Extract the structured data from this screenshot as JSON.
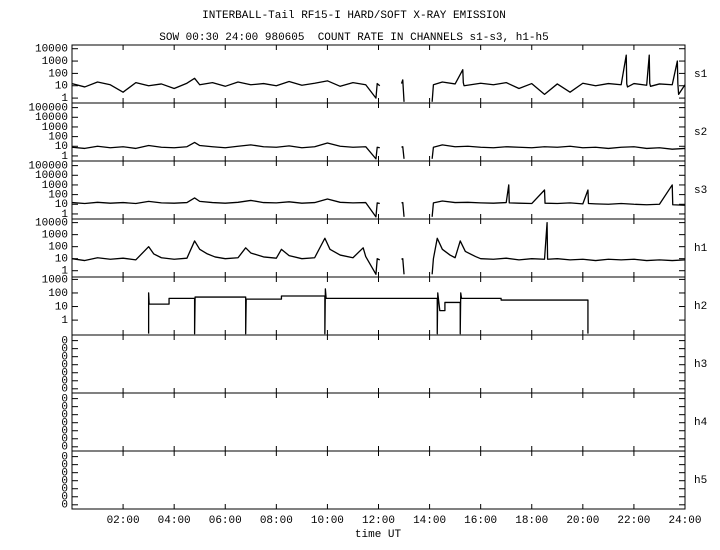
{
  "chart_data": {
    "type": "line",
    "title": "INTERBALL-Tail RF15-I HARD/SOFT X-RAY EMISSION",
    "subtitle": "SOW 00:30 24:00 980605  COUNT RATE IN CHANNELS s1-s3, h1-h5",
    "xlabel": "time UT",
    "xlim": [
      0,
      24
    ],
    "xticks": [
      {
        "value": 2,
        "label": "02:00"
      },
      {
        "value": 4,
        "label": "04:00"
      },
      {
        "value": 6,
        "label": "06:00"
      },
      {
        "value": 8,
        "label": "08:00"
      },
      {
        "value": 10,
        "label": "10:00"
      },
      {
        "value": 12,
        "label": "12:00"
      },
      {
        "value": 14,
        "label": "14:00"
      },
      {
        "value": 16,
        "label": "16:00"
      },
      {
        "value": 18,
        "label": "18:00"
      },
      {
        "value": 20,
        "label": "20:00"
      },
      {
        "value": 22,
        "label": "22:00"
      },
      {
        "value": 24,
        "label": "24:00"
      }
    ],
    "log_y": true,
    "color": "#000000",
    "panels": [
      {
        "name": "s1",
        "ylim": [
          0.4,
          20000
        ],
        "yticks": [
          1,
          10,
          100,
          1000,
          10000
        ],
        "x": [
          0,
          0.5,
          1,
          1.5,
          2,
          2.5,
          3,
          3.5,
          4,
          4.5,
          4.8,
          5,
          5.5,
          6,
          6.5,
          7,
          7.5,
          8,
          8.5,
          9,
          9.5,
          10,
          10.5,
          11,
          11.5,
          11.9,
          11.95,
          12.05,
          12.5,
          12.9,
          12.95,
          13,
          13.5,
          14.1,
          14.15,
          14.5,
          15,
          15.3,
          15.32,
          15.35,
          16,
          16.5,
          17,
          17.5,
          18,
          18.5,
          19,
          19.5,
          20,
          20.5,
          21,
          21.5,
          21.7,
          21.72,
          21.75,
          22,
          22.5,
          22.6,
          22.62,
          22.65,
          23,
          23.5,
          23.7,
          23.72,
          23.75,
          24
        ],
        "values": [
          15,
          8,
          20,
          12,
          3,
          18,
          10,
          14,
          6,
          16,
          40,
          12,
          18,
          9,
          20,
          12,
          15,
          10,
          22,
          11,
          16,
          25,
          9,
          18,
          12,
          1,
          15,
          10,
          null,
          15,
          30,
          0.5,
          null,
          0.5,
          12,
          20,
          14,
          200,
          18,
          10,
          16,
          12,
          18,
          6,
          15,
          2,
          14,
          3,
          16,
          10,
          15,
          12,
          3000,
          14,
          8,
          15,
          11,
          3000,
          16,
          9,
          14,
          12,
          1000,
          15,
          2,
          12
        ]
      },
      {
        "name": "s2",
        "ylim": [
          0.3,
          300000
        ],
        "yticks": [
          1,
          10,
          100,
          1000,
          10000,
          100000
        ],
        "x": [
          0,
          0.5,
          1,
          1.5,
          2,
          2.5,
          3,
          3.5,
          4,
          4.5,
          4.8,
          5,
          5.5,
          6,
          6.5,
          7,
          7.5,
          8,
          8.5,
          9,
          9.5,
          10,
          10.5,
          11,
          11.5,
          11.9,
          11.95,
          12.05,
          12.5,
          12.9,
          12.95,
          13,
          13.5,
          14.1,
          14.15,
          14.5,
          15,
          15.5,
          16,
          16.5,
          17,
          17.5,
          18,
          18.5,
          19,
          19.5,
          20,
          20.5,
          21,
          21.5,
          22,
          22.5,
          23,
          23.5,
          24
        ],
        "values": [
          8,
          6,
          10,
          7,
          9,
          6,
          12,
          8,
          7,
          9,
          25,
          12,
          9,
          7,
          10,
          14,
          9,
          8,
          11,
          7,
          9,
          22,
          10,
          8,
          9,
          0.5,
          8,
          7,
          null,
          8,
          9,
          0.5,
          null,
          0.5,
          8,
          14,
          9,
          10,
          8,
          7,
          9,
          8,
          7,
          9,
          8,
          10,
          7,
          8,
          6,
          8,
          9,
          6,
          7,
          5,
          6
        ]
      },
      {
        "name": "s3",
        "ylim": [
          0.3,
          300000
        ],
        "yticks": [
          1,
          10,
          100,
          1000,
          10000,
          100000
        ],
        "x": [
          0,
          0.5,
          1,
          1.5,
          2,
          2.5,
          3,
          3.5,
          4,
          4.5,
          4.8,
          5,
          5.5,
          6,
          6.5,
          7,
          7.5,
          8,
          8.5,
          9,
          9.5,
          10,
          10.5,
          11,
          11.5,
          11.9,
          11.95,
          12.05,
          12.5,
          12.9,
          12.95,
          13,
          13.5,
          14.1,
          14.15,
          14.5,
          15,
          15.5,
          16,
          16.5,
          17,
          17.1,
          17.12,
          17.5,
          18,
          18.5,
          18.52,
          19,
          19.5,
          20,
          20.2,
          20.22,
          20.5,
          21,
          21.5,
          22,
          22.5,
          23,
          23.5,
          23.52,
          24
        ],
        "values": [
          15,
          12,
          16,
          13,
          15,
          12,
          20,
          14,
          13,
          15,
          45,
          20,
          15,
          13,
          16,
          25,
          15,
          14,
          18,
          13,
          15,
          35,
          16,
          14,
          15,
          0.5,
          14,
          12,
          null,
          14,
          15,
          0.5,
          null,
          0.5,
          14,
          22,
          15,
          16,
          14,
          13,
          15,
          1000,
          14,
          13,
          12,
          300,
          13,
          12,
          14,
          11,
          300,
          12,
          11,
          10,
          12,
          10,
          9,
          10,
          1000,
          9,
          8
        ]
      },
      {
        "name": "h1",
        "ylim": [
          0.3,
          20000
        ],
        "yticks": [
          1,
          10,
          100,
          1000,
          10000
        ],
        "x": [
          0,
          0.5,
          1,
          1.5,
          2,
          2.5,
          3,
          3.2,
          3.5,
          4,
          4.5,
          4.8,
          5,
          5.3,
          5.6,
          6,
          6.5,
          6.8,
          7,
          7.5,
          8,
          8.2,
          8.5,
          9,
          9.5,
          9.9,
          10.1,
          10.5,
          11,
          11.4,
          11.5,
          11.9,
          11.95,
          12.05,
          12.5,
          12.9,
          12.95,
          13,
          13.5,
          14.1,
          14.15,
          14.3,
          14.5,
          14.8,
          15,
          15.2,
          15.4,
          15.8,
          16,
          16.5,
          17,
          17.5,
          18,
          18.5,
          18.6,
          18.62,
          19,
          19.5,
          20,
          20.5,
          21,
          21.5,
          22,
          22.5,
          23,
          23.5,
          24
        ],
        "values": [
          10,
          7,
          12,
          9,
          11,
          8,
          100,
          25,
          12,
          9,
          11,
          300,
          60,
          25,
          14,
          10,
          12,
          80,
          30,
          14,
          11,
          60,
          18,
          10,
          12,
          500,
          60,
          20,
          12,
          80,
          15,
          0.5,
          10,
          8,
          null,
          9,
          10,
          0.5,
          null,
          0.5,
          10,
          500,
          60,
          20,
          12,
          300,
          40,
          15,
          10,
          9,
          11,
          8,
          10,
          9,
          10000,
          9,
          10,
          8,
          9,
          7,
          9,
          8,
          9,
          7,
          8,
          7,
          8
        ]
      },
      {
        "name": "h2",
        "ylim": [
          0.08,
          1500
        ],
        "yticks": [
          1,
          10,
          100,
          1000
        ],
        "x": [
          3,
          3,
          3.02,
          3.8,
          3.8,
          4.8,
          4.8,
          4.82,
          6.8,
          6.8,
          6.82,
          8.2,
          8.2,
          9.9,
          9.9,
          9.92,
          9.95,
          14.3,
          14.3,
          14.32,
          14.4,
          14.6,
          14.6,
          15.2,
          15.2,
          15.22,
          15.25,
          16.8,
          16.8,
          20.2,
          20.2
        ],
        "values": [
          0.1,
          100,
          15,
          15,
          40,
          40,
          0.1,
          50,
          50,
          0.1,
          35,
          35,
          60,
          60,
          0.1,
          200,
          40,
          40,
          0.1,
          100,
          5,
          5,
          20,
          20,
          0.1,
          100,
          40,
          40,
          30,
          30,
          0.1
        ]
      },
      {
        "name": "h3",
        "ylim": [
          3e-08,
          0.5
        ],
        "yticks": [
          {
            "value": 1e-07,
            "label": "0"
          },
          {
            "value": 1e-06,
            "label": "0"
          },
          {
            "value": 1e-05,
            "label": "0"
          },
          {
            "value": 0.0001,
            "label": "0"
          },
          {
            "value": 0.001,
            "label": "0"
          },
          {
            "value": 0.01,
            "label": "0"
          },
          {
            "value": 0.1,
            "label": "0"
          }
        ]
      },
      {
        "name": "h4",
        "ylim": [
          3e-08,
          0.5
        ],
        "yticks": [
          {
            "value": 1e-07,
            "label": "0"
          },
          {
            "value": 1e-06,
            "label": "0"
          },
          {
            "value": 1e-05,
            "label": "0"
          },
          {
            "value": 0.0001,
            "label": "0"
          },
          {
            "value": 0.001,
            "label": "0"
          },
          {
            "value": 0.01,
            "label": "0"
          },
          {
            "value": 0.1,
            "label": "0"
          }
        ]
      },
      {
        "name": "h5",
        "ylim": [
          3e-08,
          0.5
        ],
        "yticks": [
          {
            "value": 1e-07,
            "label": "0"
          },
          {
            "value": 1e-06,
            "label": "0"
          },
          {
            "value": 1e-05,
            "label": "0"
          },
          {
            "value": 0.0001,
            "label": "0"
          },
          {
            "value": 0.001,
            "label": "0"
          },
          {
            "value": 0.01,
            "label": "0"
          },
          {
            "value": 0.1,
            "label": "0"
          }
        ]
      }
    ]
  }
}
